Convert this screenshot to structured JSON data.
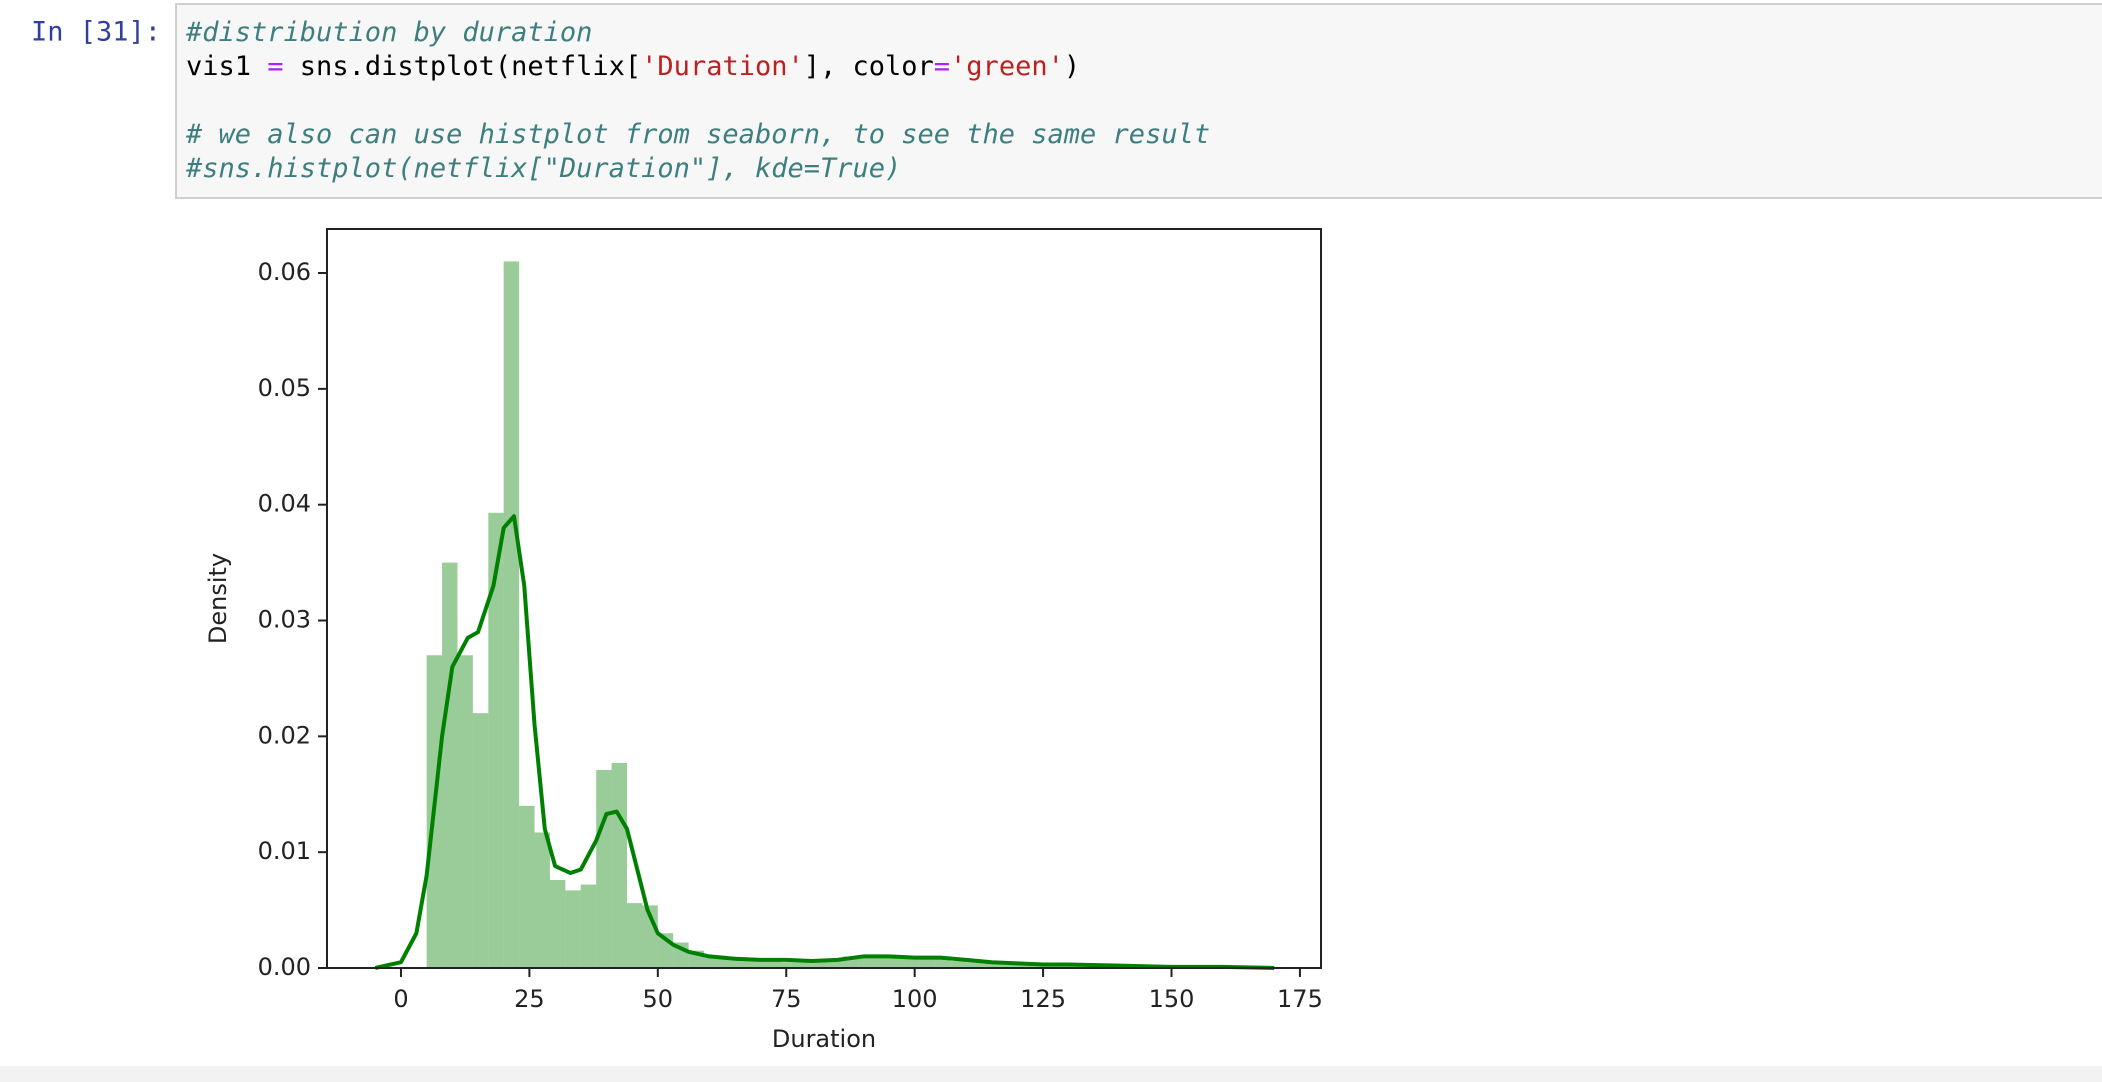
{
  "cell": {
    "prompt": "In [31]:",
    "lines": [
      [
        {
          "text": "#distribution by duration",
          "kind": "comment"
        }
      ],
      [
        {
          "text": "vis1 ",
          "kind": "plain"
        },
        {
          "text": "=",
          "kind": "operator"
        },
        {
          "text": " sns.distplot(netflix[",
          "kind": "plain"
        },
        {
          "text": "'Duration'",
          "kind": "string"
        },
        {
          "text": "], color",
          "kind": "plain"
        },
        {
          "text": "=",
          "kind": "operator"
        },
        {
          "text": "'green'",
          "kind": "string"
        },
        {
          "text": ")",
          "kind": "plain"
        }
      ],
      [],
      [
        {
          "text": "# we also can use histplot from seaborn, to see the same result",
          "kind": "comment"
        }
      ],
      [
        {
          "text": "#sns.histplot(netflix[\"Duration\"], kde=True)",
          "kind": "comment"
        }
      ]
    ]
  },
  "chart_data": {
    "type": "histogram",
    "xlabel": "Duration",
    "ylabel": "Density",
    "color": "green",
    "bins": [
      5,
      8,
      11,
      14,
      17,
      20,
      23,
      26,
      29,
      32,
      35,
      38,
      41,
      44,
      47,
      50,
      53,
      56,
      59,
      62,
      65,
      68,
      71,
      74,
      77,
      80,
      83,
      86,
      89,
      92,
      95,
      98,
      101,
      104,
      107,
      110,
      113,
      116,
      119,
      122,
      125,
      128,
      131,
      134,
      137,
      140,
      143,
      146,
      149,
      152,
      155
    ],
    "counts": [
      0.027,
      0.035,
      0.027,
      0.022,
      0.0393,
      0.061,
      0.014,
      0.0117,
      0.0076,
      0.0067,
      0.0072,
      0.0171,
      0.0177,
      0.0056,
      0.0054,
      0.003,
      0.0022,
      0.0015,
      0.001,
      0.0008,
      0.0007,
      0.0006,
      0.0006,
      0.0005,
      0.0005,
      0.0006,
      0.0008,
      0.001,
      0.0011,
      0.001,
      0.001,
      0.0009,
      0.0009,
      0.0008,
      0.0006,
      0.0005,
      0.0004,
      0.0003,
      0.0003,
      0.0003,
      0.0003,
      0.0002,
      0.0002,
      0.0002,
      0.0001,
      0.0001,
      0.0001,
      0.0001,
      0.0001,
      0.0001
    ],
    "kde": {
      "x": [
        -5,
        0,
        3,
        5,
        8,
        10,
        13,
        15,
        18,
        20,
        22,
        24,
        26,
        28,
        30,
        33,
        35,
        38,
        40,
        42,
        44,
        46,
        48,
        50,
        53,
        56,
        60,
        65,
        70,
        75,
        80,
        85,
        90,
        95,
        100,
        105,
        110,
        115,
        120,
        125,
        130,
        140,
        150,
        160,
        170
      ],
      "values": [
        0,
        0.0005,
        0.003,
        0.008,
        0.02,
        0.026,
        0.0285,
        0.029,
        0.033,
        0.038,
        0.039,
        0.033,
        0.021,
        0.012,
        0.0088,
        0.0082,
        0.0085,
        0.011,
        0.0133,
        0.0135,
        0.012,
        0.0085,
        0.005,
        0.003,
        0.002,
        0.0014,
        0.001,
        0.0008,
        0.0007,
        0.0007,
        0.0006,
        0.0007,
        0.001,
        0.001,
        0.0009,
        0.0009,
        0.0007,
        0.0005,
        0.0004,
        0.0003,
        0.0003,
        0.0002,
        0.0001,
        0.0001,
        0
      ]
    },
    "xlim": [
      -14.4,
      179.1
    ],
    "ylim": [
      0,
      0.0638
    ],
    "xticks": [
      0,
      25,
      50,
      75,
      100,
      125,
      150,
      175
    ],
    "yticks": [
      {
        "value": 0,
        "label": "0.00"
      },
      {
        "value": 0.01,
        "label": "0.01"
      },
      {
        "value": 0.02,
        "label": "0.02"
      },
      {
        "value": 0.03,
        "label": "0.03"
      },
      {
        "value": 0.04,
        "label": "0.04"
      },
      {
        "value": 0.05,
        "label": "0.05"
      },
      {
        "value": 0.06,
        "label": "0.06"
      }
    ]
  }
}
